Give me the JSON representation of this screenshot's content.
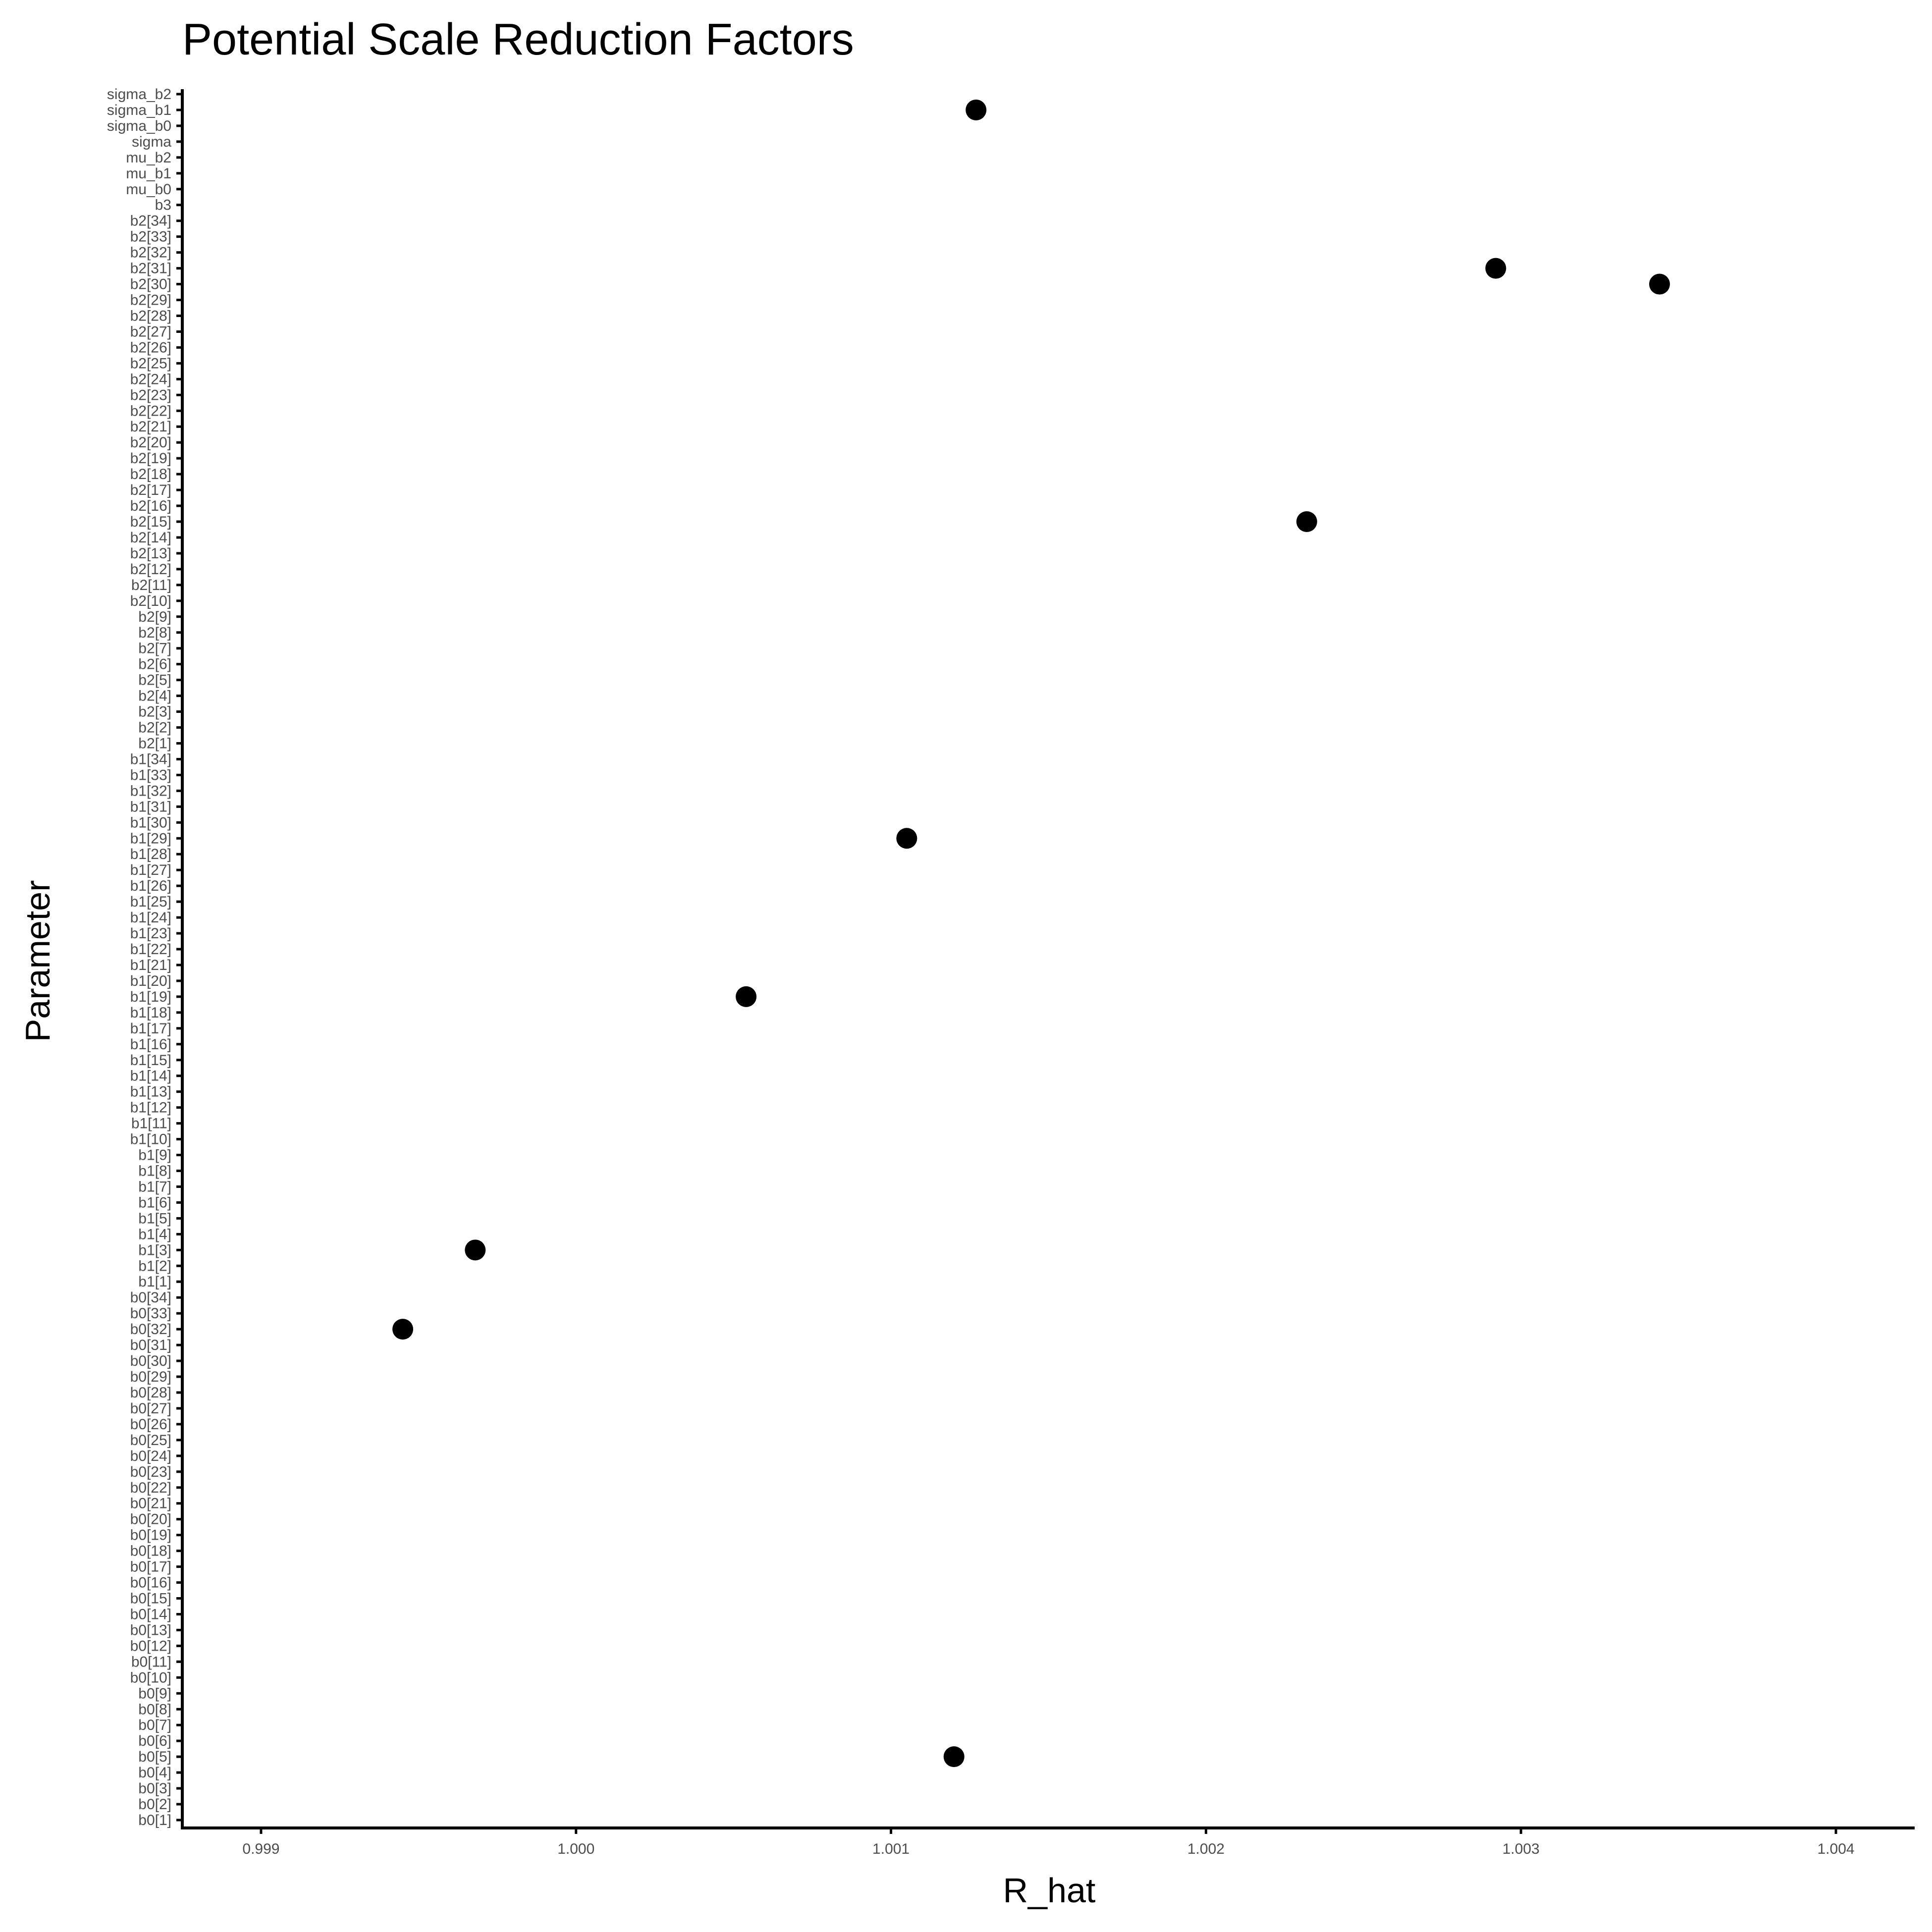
{
  "chart_data": {
    "type": "scatter",
    "title": "Potential Scale Reduction Factors",
    "xlabel": "R_hat",
    "ylabel": "Parameter",
    "xlim": [
      0.99875,
      1.00425
    ],
    "xticks": [
      "0.999",
      "1.000",
      "1.001",
      "1.002",
      "1.003",
      "1.004"
    ],
    "grid": false,
    "legend": "none",
    "point_color": "#000000",
    "categories": [
      "b0[1]",
      "b0[2]",
      "b0[3]",
      "b0[4]",
      "b0[5]",
      "b0[6]",
      "b0[7]",
      "b0[8]",
      "b0[9]",
      "b0[10]",
      "b0[11]",
      "b0[12]",
      "b0[13]",
      "b0[14]",
      "b0[15]",
      "b0[16]",
      "b0[17]",
      "b0[18]",
      "b0[19]",
      "b0[20]",
      "b0[21]",
      "b0[22]",
      "b0[23]",
      "b0[24]",
      "b0[25]",
      "b0[26]",
      "b0[27]",
      "b0[28]",
      "b0[29]",
      "b0[30]",
      "b0[31]",
      "b0[32]",
      "b0[33]",
      "b0[34]",
      "b1[1]",
      "b1[2]",
      "b1[3]",
      "b1[4]",
      "b1[5]",
      "b1[6]",
      "b1[7]",
      "b1[8]",
      "b1[9]",
      "b1[10]",
      "b1[11]",
      "b1[12]",
      "b1[13]",
      "b1[14]",
      "b1[15]",
      "b1[16]",
      "b1[17]",
      "b1[18]",
      "b1[19]",
      "b1[20]",
      "b1[21]",
      "b1[22]",
      "b1[23]",
      "b1[24]",
      "b1[25]",
      "b1[26]",
      "b1[27]",
      "b1[28]",
      "b1[29]",
      "b1[30]",
      "b1[31]",
      "b1[32]",
      "b1[33]",
      "b1[34]",
      "b2[1]",
      "b2[2]",
      "b2[3]",
      "b2[4]",
      "b2[5]",
      "b2[6]",
      "b2[7]",
      "b2[8]",
      "b2[9]",
      "b2[10]",
      "b2[11]",
      "b2[12]",
      "b2[13]",
      "b2[14]",
      "b2[15]",
      "b2[16]",
      "b2[17]",
      "b2[18]",
      "b2[19]",
      "b2[20]",
      "b2[21]",
      "b2[22]",
      "b2[23]",
      "b2[24]",
      "b2[25]",
      "b2[26]",
      "b2[27]",
      "b2[28]",
      "b2[29]",
      "b2[30]",
      "b2[31]",
      "b2[32]",
      "b2[33]",
      "b2[34]",
      "b3",
      "mu_b0",
      "mu_b1",
      "mu_b2",
      "sigma",
      "sigma_b0",
      "sigma_b1",
      "sigma_b2"
    ],
    "points": [
      {
        "parameter": "b0[5]",
        "value": 1.0012
      },
      {
        "parameter": "b0[32]",
        "value": 0.99945
      },
      {
        "parameter": "b1[3]",
        "value": 0.99968
      },
      {
        "parameter": "b1[19]",
        "value": 1.00054
      },
      {
        "parameter": "b1[29]",
        "value": 1.00105
      },
      {
        "parameter": "b2[15]",
        "value": 1.00232
      },
      {
        "parameter": "b2[30]",
        "value": 1.00344
      },
      {
        "parameter": "b2[31]",
        "value": 1.00292
      },
      {
        "parameter": "sigma_b1",
        "value": 1.00127
      }
    ]
  }
}
